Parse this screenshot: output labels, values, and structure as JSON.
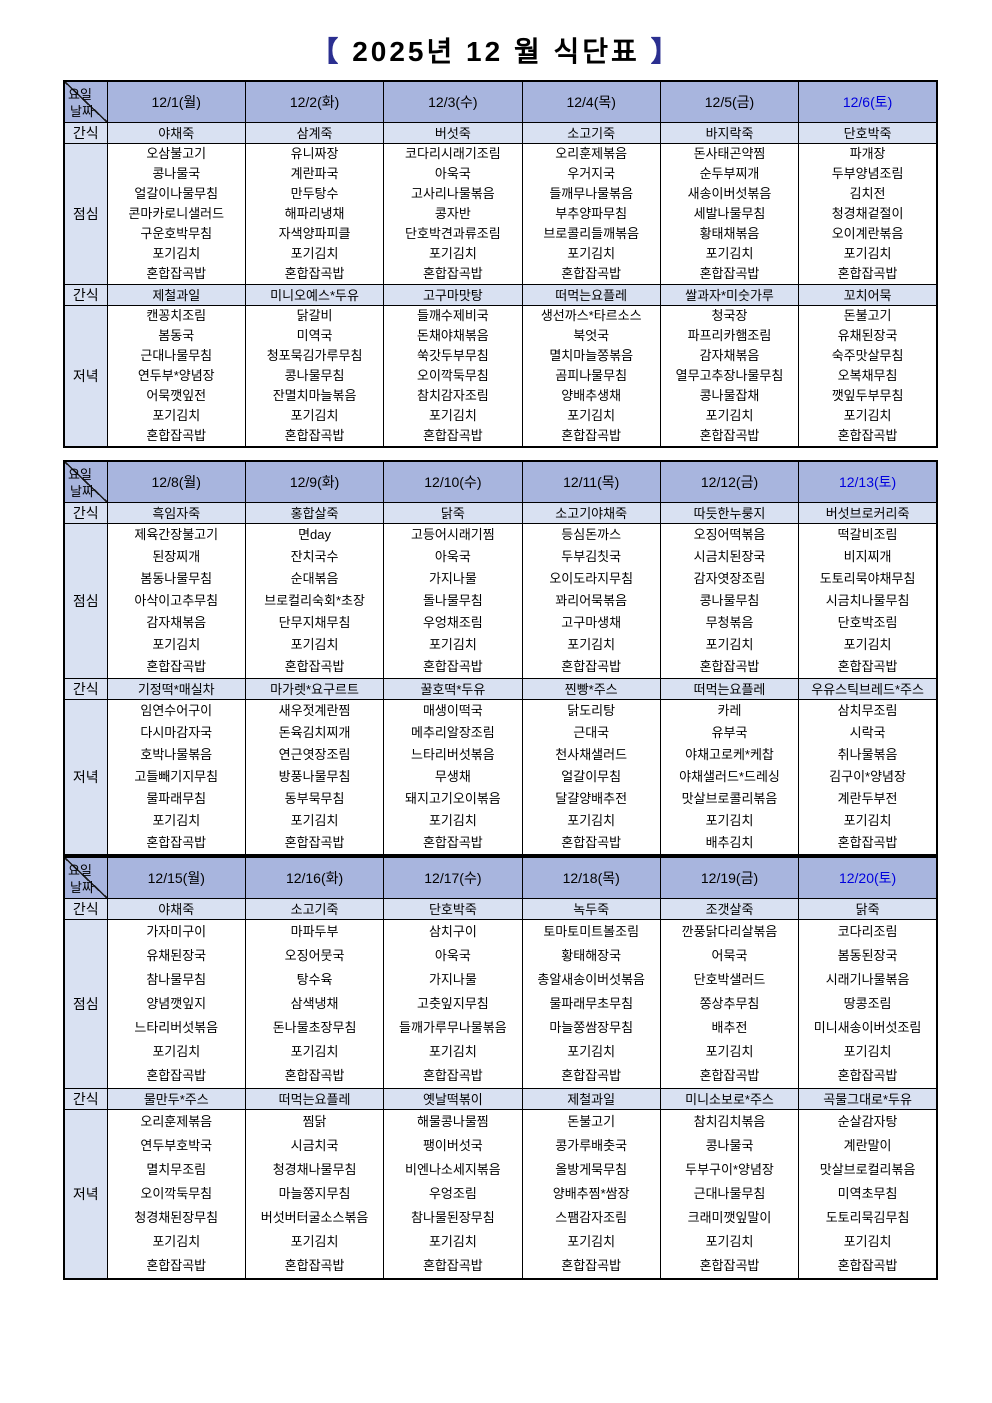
{
  "title": {
    "bracket_open": "【",
    "text": "2025년 12 월 식단표",
    "bracket_close": "】"
  },
  "row_labels": {
    "day": "요일",
    "date": "날짜",
    "snack": "간식",
    "lunch": "점심",
    "dinner": "저녁"
  },
  "colors": {
    "header_fill": "#a8b5de",
    "light_fill": "#d9e1f2",
    "saturday_text": "#0000dd",
    "bracket": "#2b2f90",
    "border": "#000000"
  },
  "weeks": [
    {
      "dates": [
        "12/1(월)",
        "12/2(화)",
        "12/3(수)",
        "12/4(목)",
        "12/5(금)",
        "12/6(토)"
      ],
      "snack_morning": [
        "야채죽",
        "삼계죽",
        "버섯죽",
        "소고기죽",
        "바지락죽",
        "단호박죽"
      ],
      "lunch": [
        [
          "오삼불고기",
          "콩나물국",
          "얼갈이나물무침",
          "콘마카로니샐러드",
          "구운호박무침",
          "포기김치",
          "혼합잡곡밥"
        ],
        [
          "유니짜장",
          "계란파국",
          "만두탕수",
          "해파리냉채",
          "자색양파피클",
          "포기김치",
          "혼합잡곡밥"
        ],
        [
          "코다리시래기조림",
          "아욱국",
          "고사리나물볶음",
          "콩자반",
          "단호박견과류조림",
          "포기김치",
          "혼합잡곡밥"
        ],
        [
          "오리훈제볶음",
          "우거지국",
          "들깨무나물볶음",
          "부추양파무침",
          "브로콜리들깨볶음",
          "포기김치",
          "혼합잡곡밥"
        ],
        [
          "돈사태곤약찜",
          "순두부찌개",
          "새송이버섯볶음",
          "세발나물무침",
          "황태채볶음",
          "포기김치",
          "혼합잡곡밥"
        ],
        [
          "파개장",
          "두부양념조림",
          "김치전",
          "청경채겉절이",
          "오이계란볶음",
          "포기김치",
          "혼합잡곡밥"
        ]
      ],
      "snack_afternoon": [
        "제철과일",
        "미니오예스*두유",
        "고구마맛탕",
        "떠먹는요플레",
        "쌀과자*미숫가루",
        "꼬치어묵"
      ],
      "dinner": [
        [
          "캔꽁치조림",
          "봄동국",
          "근대나물무침",
          "연두부*양념장",
          "어묵깻잎전",
          "포기김치",
          "혼합잡곡밥"
        ],
        [
          "닭갈비",
          "미역국",
          "청포묵김가루무침",
          "콩나물무침",
          "잔멸치마늘볶음",
          "포기김치",
          "혼합잡곡밥"
        ],
        [
          "들깨수제비국",
          "돈채야채볶음",
          "쑥갓두부무침",
          "오이깍둑무침",
          "참치감자조림",
          "포기김치",
          "혼합잡곡밥"
        ],
        [
          "생선까스*타르소스",
          "북엇국",
          "멸치마늘쫑볶음",
          "곰피나물무침",
          "양배추생채",
          "포기김치",
          "혼합잡곡밥"
        ],
        [
          "청국장",
          "파프리카햄조림",
          "감자채볶음",
          "열무고추장나물무침",
          "콩나물잡채",
          "포기김치",
          "혼합잡곡밥"
        ],
        [
          "돈불고기",
          "유채된장국",
          "숙주맛살무침",
          "오복채무침",
          "깻잎두부무침",
          "포기김치",
          "혼합잡곡밥"
        ]
      ]
    },
    {
      "dates": [
        "12/8(월)",
        "12/9(화)",
        "12/10(수)",
        "12/11(목)",
        "12/12(금)",
        "12/13(토)"
      ],
      "snack_morning": [
        "흑임자죽",
        "홍합살죽",
        "닭죽",
        "소고기야채죽",
        "따듯한누룽지",
        "버섯브로커리죽"
      ],
      "lunch": [
        [
          "제육간장불고기",
          "된장찌개",
          "봄동나물무침",
          "아삭이고추무침",
          "감자채볶음",
          "포기김치",
          "혼합잡곡밥"
        ],
        [
          "면day",
          "잔치국수",
          "순대볶음",
          "브로컬리숙회*초장",
          "단무지채무침",
          "포기김치",
          "혼합잡곡밥"
        ],
        [
          "고등어시래기찜",
          "아욱국",
          "가지나물",
          "돌나물무침",
          "우엉채조림",
          "포기김치",
          "혼합잡곡밥"
        ],
        [
          "등심돈까스",
          "두부김칫국",
          "오이도라지무침",
          "꽈리어묵볶음",
          "고구마생채",
          "포기김치",
          "혼합잡곡밥"
        ],
        [
          "오징어떡볶음",
          "시금치된장국",
          "감자엿장조림",
          "콩나물무침",
          "무청볶음",
          "포기김치",
          "혼합잡곡밥"
        ],
        [
          "떡갈비조림",
          "비지찌개",
          "도토리묵야채무침",
          "시금치나물무침",
          "단호박조림",
          "포기김치",
          "혼합잡곡밥"
        ]
      ],
      "snack_afternoon": [
        "기정떡*매실차",
        "마가렛*요구르트",
        "꿀호떡*두유",
        "찐빵*주스",
        "떠먹는요플레",
        "우유스틱브레드*주스"
      ],
      "dinner": [
        [
          "임연수어구이",
          "다시마감자국",
          "호박나물볶음",
          "고들빼기지무침",
          "물파래무침",
          "포기김치",
          "혼합잡곡밥"
        ],
        [
          "새우젓계란찜",
          "돈육김치찌개",
          "연근엿장조림",
          "방풍나물무침",
          "동부묵무침",
          "포기김치",
          "혼합잡곡밥"
        ],
        [
          "매생이떡국",
          "메추리알장조림",
          "느타리버섯볶음",
          "무생채",
          "돼지고기오이볶음",
          "포기김치",
          "혼합잡곡밥"
        ],
        [
          "닭도리탕",
          "근대국",
          "천사채샐러드",
          "얼갈이무침",
          "달걀양배추전",
          "포기김치",
          "혼합잡곡밥"
        ],
        [
          "카레",
          "유부국",
          "야채고로케*케찹",
          "야채샐러드*드레싱",
          "맛살브로콜리볶음",
          "포기김치",
          "배추김치"
        ],
        [
          "삼치무조림",
          "시락국",
          "취나물볶음",
          "김구이*양념장",
          "계란두부전",
          "포기김치",
          "혼합잡곡밥"
        ]
      ]
    },
    {
      "dates": [
        "12/15(월)",
        "12/16(화)",
        "12/17(수)",
        "12/18(목)",
        "12/19(금)",
        "12/20(토)"
      ],
      "snack_morning": [
        "야채죽",
        "소고기죽",
        "단호박죽",
        "녹두죽",
        "조갯살죽",
        "닭죽"
      ],
      "lunch": [
        [
          "가자미구이",
          "유채된장국",
          "참나물무침",
          "양념깻잎지",
          "느타리버섯볶음",
          "포기김치",
          "혼합잡곡밥"
        ],
        [
          "마파두부",
          "오징어뭇국",
          "탕수육",
          "삼색냉채",
          "돈나물초장무침",
          "포기김치",
          "혼합잡곡밥"
        ],
        [
          "삼치구이",
          "아욱국",
          "가지나물",
          "고춧잎지무침",
          "들깨가루무나물볶음",
          "포기김치",
          "혼합잡곡밥"
        ],
        [
          "토마토미트볼조림",
          "황태해장국",
          "총알새송이버섯볶음",
          "물파래무초무침",
          "마늘쫑쌈장무침",
          "포기김치",
          "혼합잡곡밥"
        ],
        [
          "깐풍닭다리살볶음",
          "어묵국",
          "단호박샐러드",
          "쫑상추무침",
          "배추전",
          "포기김치",
          "혼합잡곡밥"
        ],
        [
          "코다리조림",
          "봄동된장국",
          "시래기나물볶음",
          "땅콩조림",
          "미니새송이버섯조림",
          "포기김치",
          "혼합잡곡밥"
        ]
      ],
      "snack_afternoon": [
        "물만두*주스",
        "떠먹는요플레",
        "옛날떡볶이",
        "제철과일",
        "미니소보로*주스",
        "곡물그대로*두유"
      ],
      "dinner": [
        [
          "오리훈제볶음",
          "연두부호박국",
          "멸치무조림",
          "오이깍둑무침",
          "청경채된장무침",
          "포기김치",
          "혼합잡곡밥"
        ],
        [
          "찜닭",
          "시금치국",
          "청경채나물무침",
          "마늘쫑지무침",
          "버섯버터굴소스볶음",
          "포기김치",
          "혼합잡곡밥"
        ],
        [
          "해물콩나물찜",
          "팽이버섯국",
          "비엔나소세지볶음",
          "우엉조림",
          "참나물된장무침",
          "포기김치",
          "혼합잡곡밥"
        ],
        [
          "돈불고기",
          "콩가루배춧국",
          "올방게묵무침",
          "양배추찜*쌈장",
          "스팸감자조림",
          "포기김치",
          "혼합잡곡밥"
        ],
        [
          "참치김치볶음",
          "콩나물국",
          "두부구이*양념장",
          "근대나물무침",
          "크래미깻잎말이",
          "포기김치",
          "혼합잡곡밥"
        ],
        [
          "순살감자탕",
          "계란말이",
          "맛살브로컬리볶음",
          "미역초무침",
          "도토리묵김무침",
          "포기김치",
          "혼합잡곡밥"
        ]
      ]
    }
  ]
}
